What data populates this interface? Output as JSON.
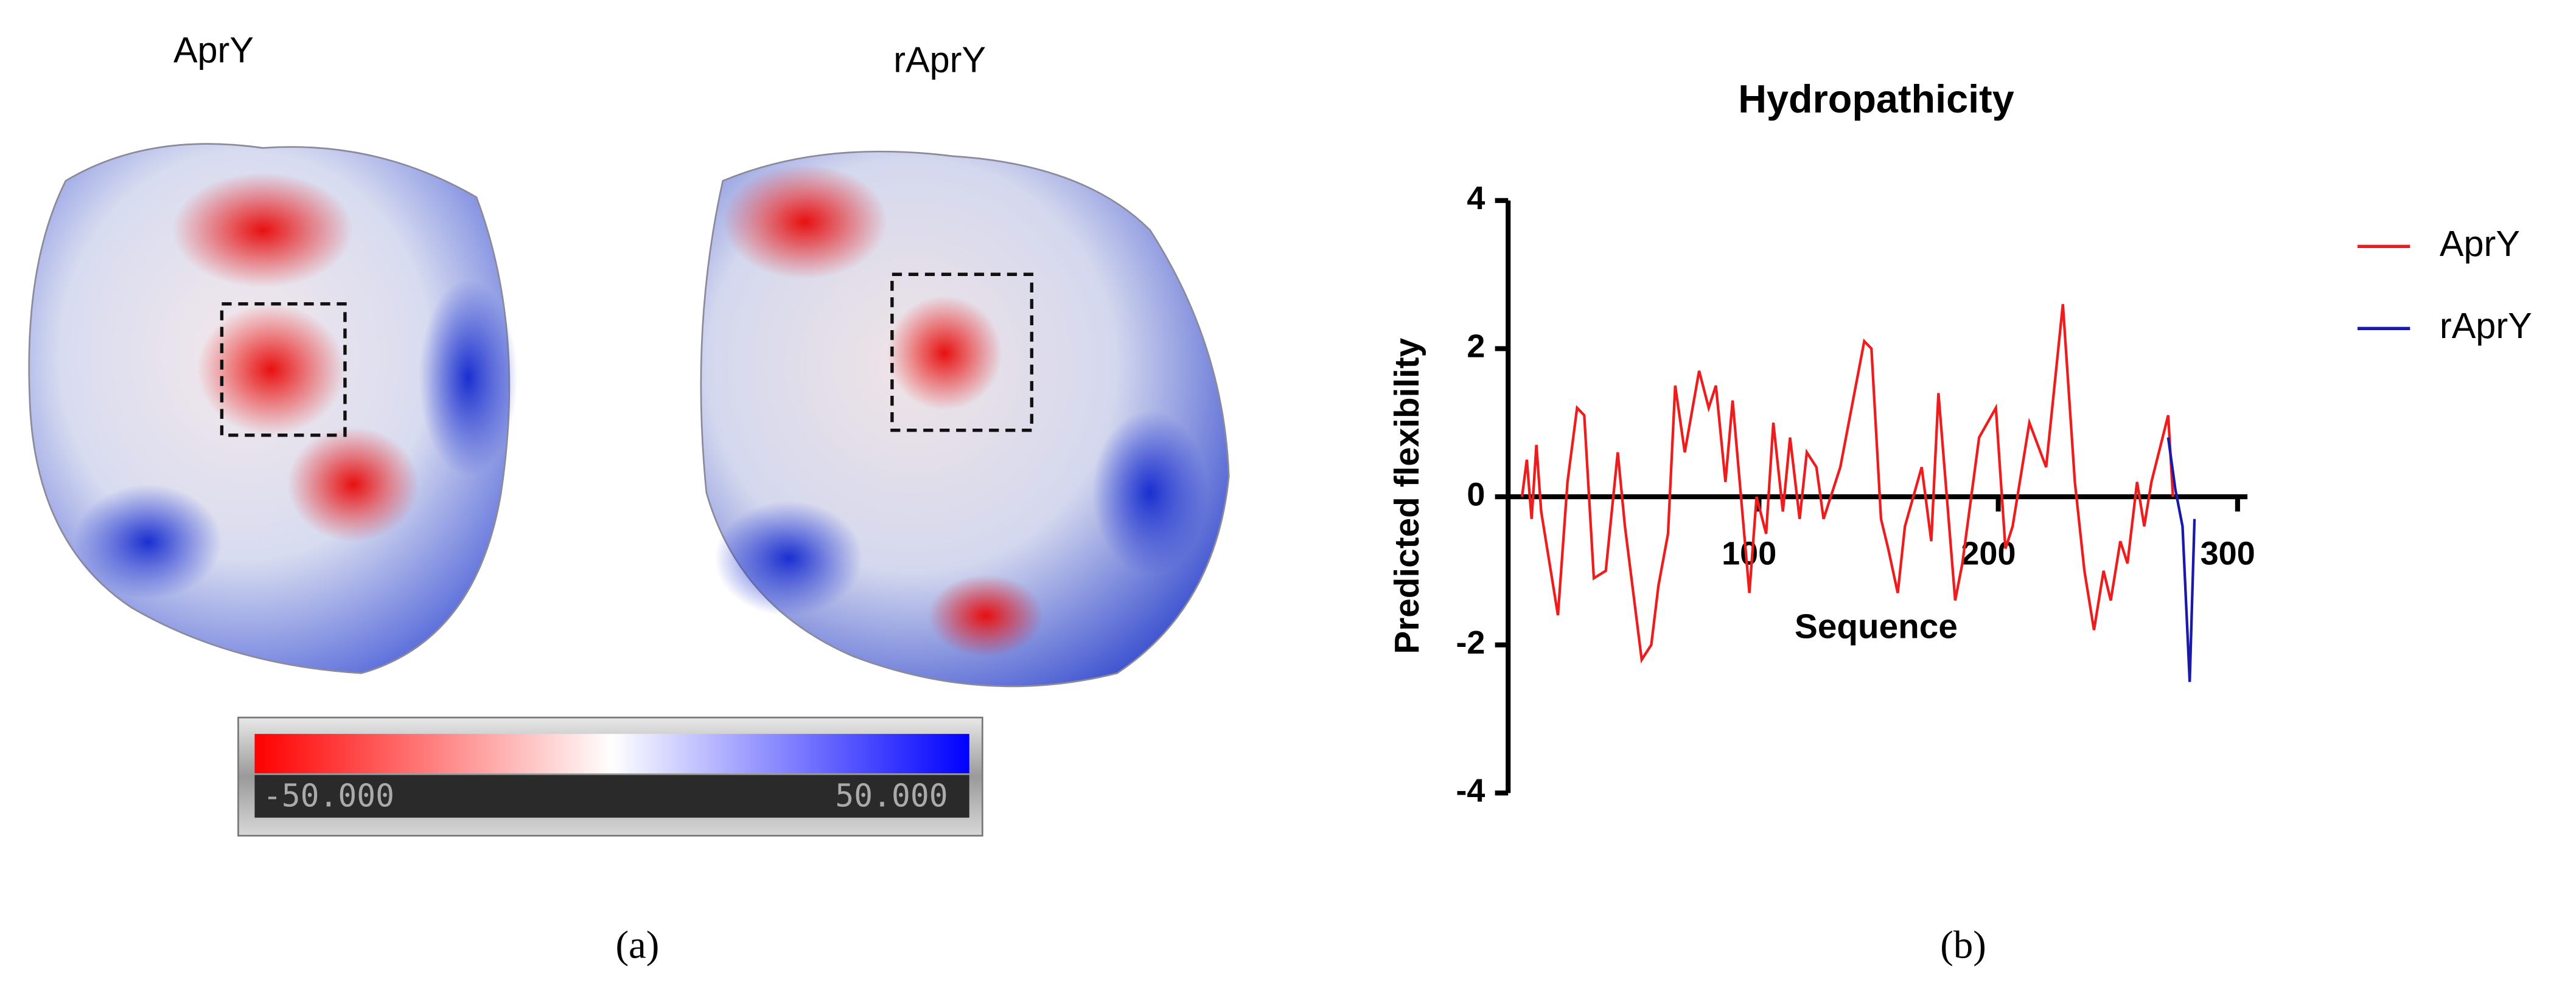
{
  "chart_data": {
    "type": "line",
    "title": "Hydropathicity",
    "x_label": "Sequence",
    "y_label": "Predicted flexibility",
    "xlim": [
      0,
      300
    ],
    "xticks": [
      100,
      200,
      300
    ],
    "ylim": [
      -4,
      4
    ],
    "yticks": [
      4,
      2,
      0,
      -2,
      -4
    ],
    "legend": "right",
    "series": [
      {
        "name": "AprY",
        "color": "#ee1c1c",
        "x": [
          1,
          3,
          5,
          7,
          9,
          12,
          16,
          20,
          24,
          27,
          31,
          36,
          41,
          44,
          51,
          55,
          58,
          62,
          65,
          69,
          75,
          79,
          82,
          86,
          89,
          96,
          99,
          103,
          106,
          110,
          113,
          117,
          120,
          124,
          127,
          134,
          144,
          147,
          151,
          154,
          158,
          161,
          168,
          172,
          175,
          182,
          185,
          192,
          199,
          203,
          206,
          213,
          220,
          227,
          232,
          236,
          240,
          244,
          247,
          251,
          254,
          258,
          261,
          264,
          271,
          273
        ],
        "values": [
          0,
          0.5,
          -0.3,
          0.7,
          -0.2,
          -0.8,
          -1.6,
          0.2,
          1.2,
          1.1,
          -1.1,
          -1.0,
          0.6,
          -0.4,
          -2.2,
          -2.0,
          -1.2,
          -0.5,
          1.5,
          0.6,
          1.7,
          1.2,
          1.5,
          0.2,
          1.3,
          -1.3,
          0,
          -0.5,
          1.0,
          -0.2,
          0.8,
          -0.3,
          0.6,
          0.4,
          -0.3,
          0.4,
          2.1,
          2.0,
          -0.3,
          -0.7,
          -1.3,
          -0.4,
          0.4,
          -0.6,
          1.4,
          -1.4,
          -0.9,
          0.8,
          1.2,
          -0.7,
          -0.4,
          1.0,
          0.4,
          2.6,
          0.2,
          -1.0,
          -1.8,
          -1.0,
          -1.4,
          -0.6,
          -0.9,
          0.2,
          -0.4,
          0.2,
          1.1,
          0
        ]
      },
      {
        "name": "rAprY",
        "color": "#1a1aa8",
        "x": [
          271,
          274,
          277,
          280,
          282
        ],
        "values": [
          0.8,
          0.1,
          -0.4,
          -2.5,
          -0.3
        ]
      }
    ]
  },
  "panel_a": {
    "labels": [
      "AprY",
      "rAprY"
    ],
    "colorbar": {
      "min_label": "-50.000",
      "max_label": "50.000"
    }
  },
  "panel_labels": [
    "(a)",
    "(b)"
  ]
}
